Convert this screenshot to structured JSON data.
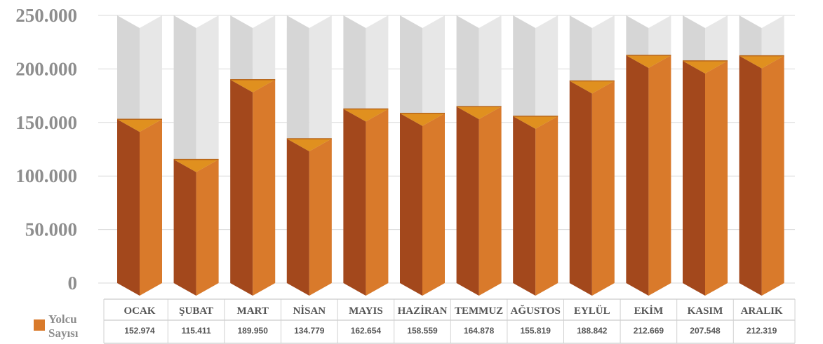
{
  "chart_data": {
    "type": "bar",
    "categories": [
      "OCAK",
      "ŞUBAT",
      "MART",
      "NİSAN",
      "MAYIS",
      "HAZİRAN",
      "TEMMUZ",
      "AĞUSTOS",
      "EYLÜL",
      "EKİM",
      "KASIM",
      "ARALIK"
    ],
    "series": [
      {
        "name": "Yolcu Sayısı",
        "values": [
          152974,
          115411,
          189950,
          134779,
          162654,
          158559,
          164878,
          155819,
          188842,
          212669,
          207548,
          212319
        ],
        "labels": [
          "152.974",
          "115.411",
          "189.950",
          "134.779",
          "162.654",
          "158.559",
          "164.878",
          "155.819",
          "188.842",
          "212.669",
          "207.548",
          "212.319"
        ]
      }
    ],
    "yticks": [
      "0",
      "50.000",
      "100.000",
      "150.000",
      "200.000",
      "250.000"
    ],
    "ylim": [
      0,
      250000
    ],
    "legend": {
      "label_line1": "Yolcu",
      "label_line2": "Sayısı",
      "placement": "bottom-left"
    },
    "title": "",
    "xlabel": "",
    "ylabel": "",
    "grid": true,
    "colors": {
      "bar_front_light": "#d97a2b",
      "bar_front_dark": "#a3481c",
      "bar_top": "#e0901f",
      "bar_top_dark": "#b8661a",
      "bg_light": "#e7e7e7",
      "bg_dark": "#d6d6d6",
      "tick_text": "#8e8e8e",
      "label_text": "#555555",
      "grid": "#d9d9d9"
    }
  }
}
